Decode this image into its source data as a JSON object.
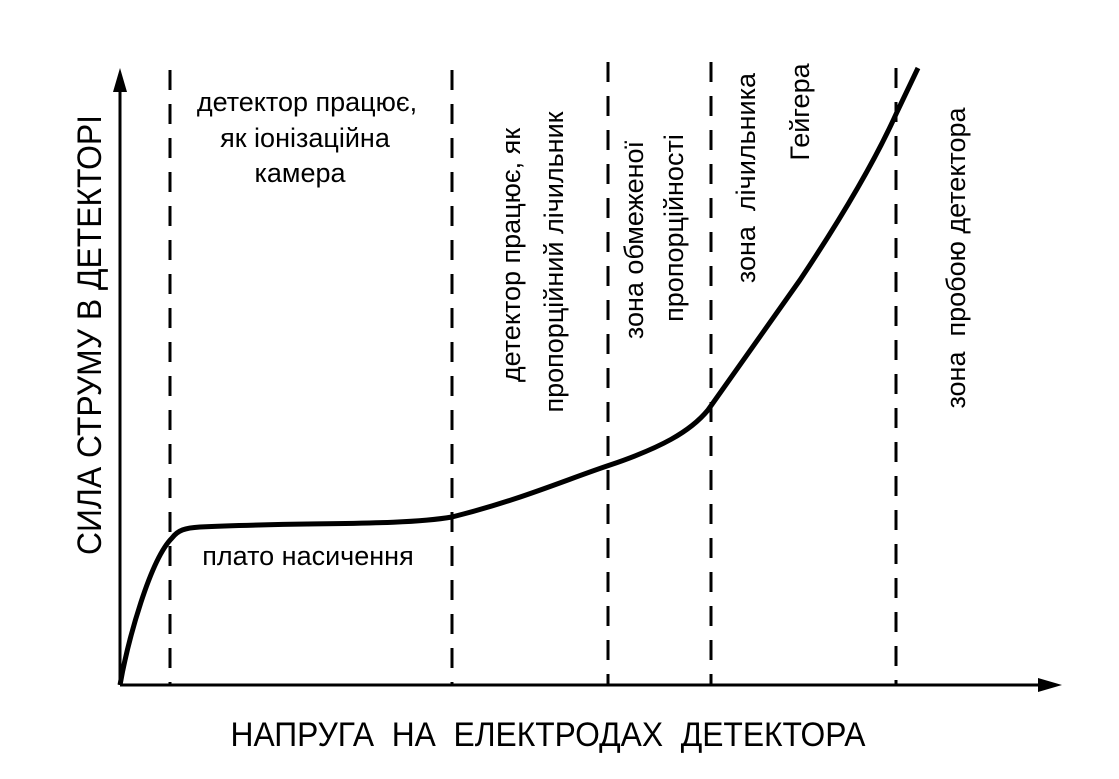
{
  "axes": {
    "y_label": "СИЛА СТРУМУ В ДЕТЕКТОРІ",
    "x_label": "НАПРУГА  НА  ЕЛЕКТРОДАХ  ДЕТЕКТОРА"
  },
  "zones": [
    {
      "lines": [
        "детектор працює,",
        "як іонізаційна",
        "камера"
      ]
    },
    {
      "lines": [
        "детектор працює, як",
        "пропорційний лічильник"
      ]
    },
    {
      "lines": [
        "зона обмеженої",
        "пропорційності"
      ]
    },
    {
      "lines": [
        "зона  лічильника",
        "Гейгера"
      ]
    },
    {
      "lines": [
        "зона  пробою детектора"
      ]
    }
  ],
  "plateau_label": "плато насичення"
}
